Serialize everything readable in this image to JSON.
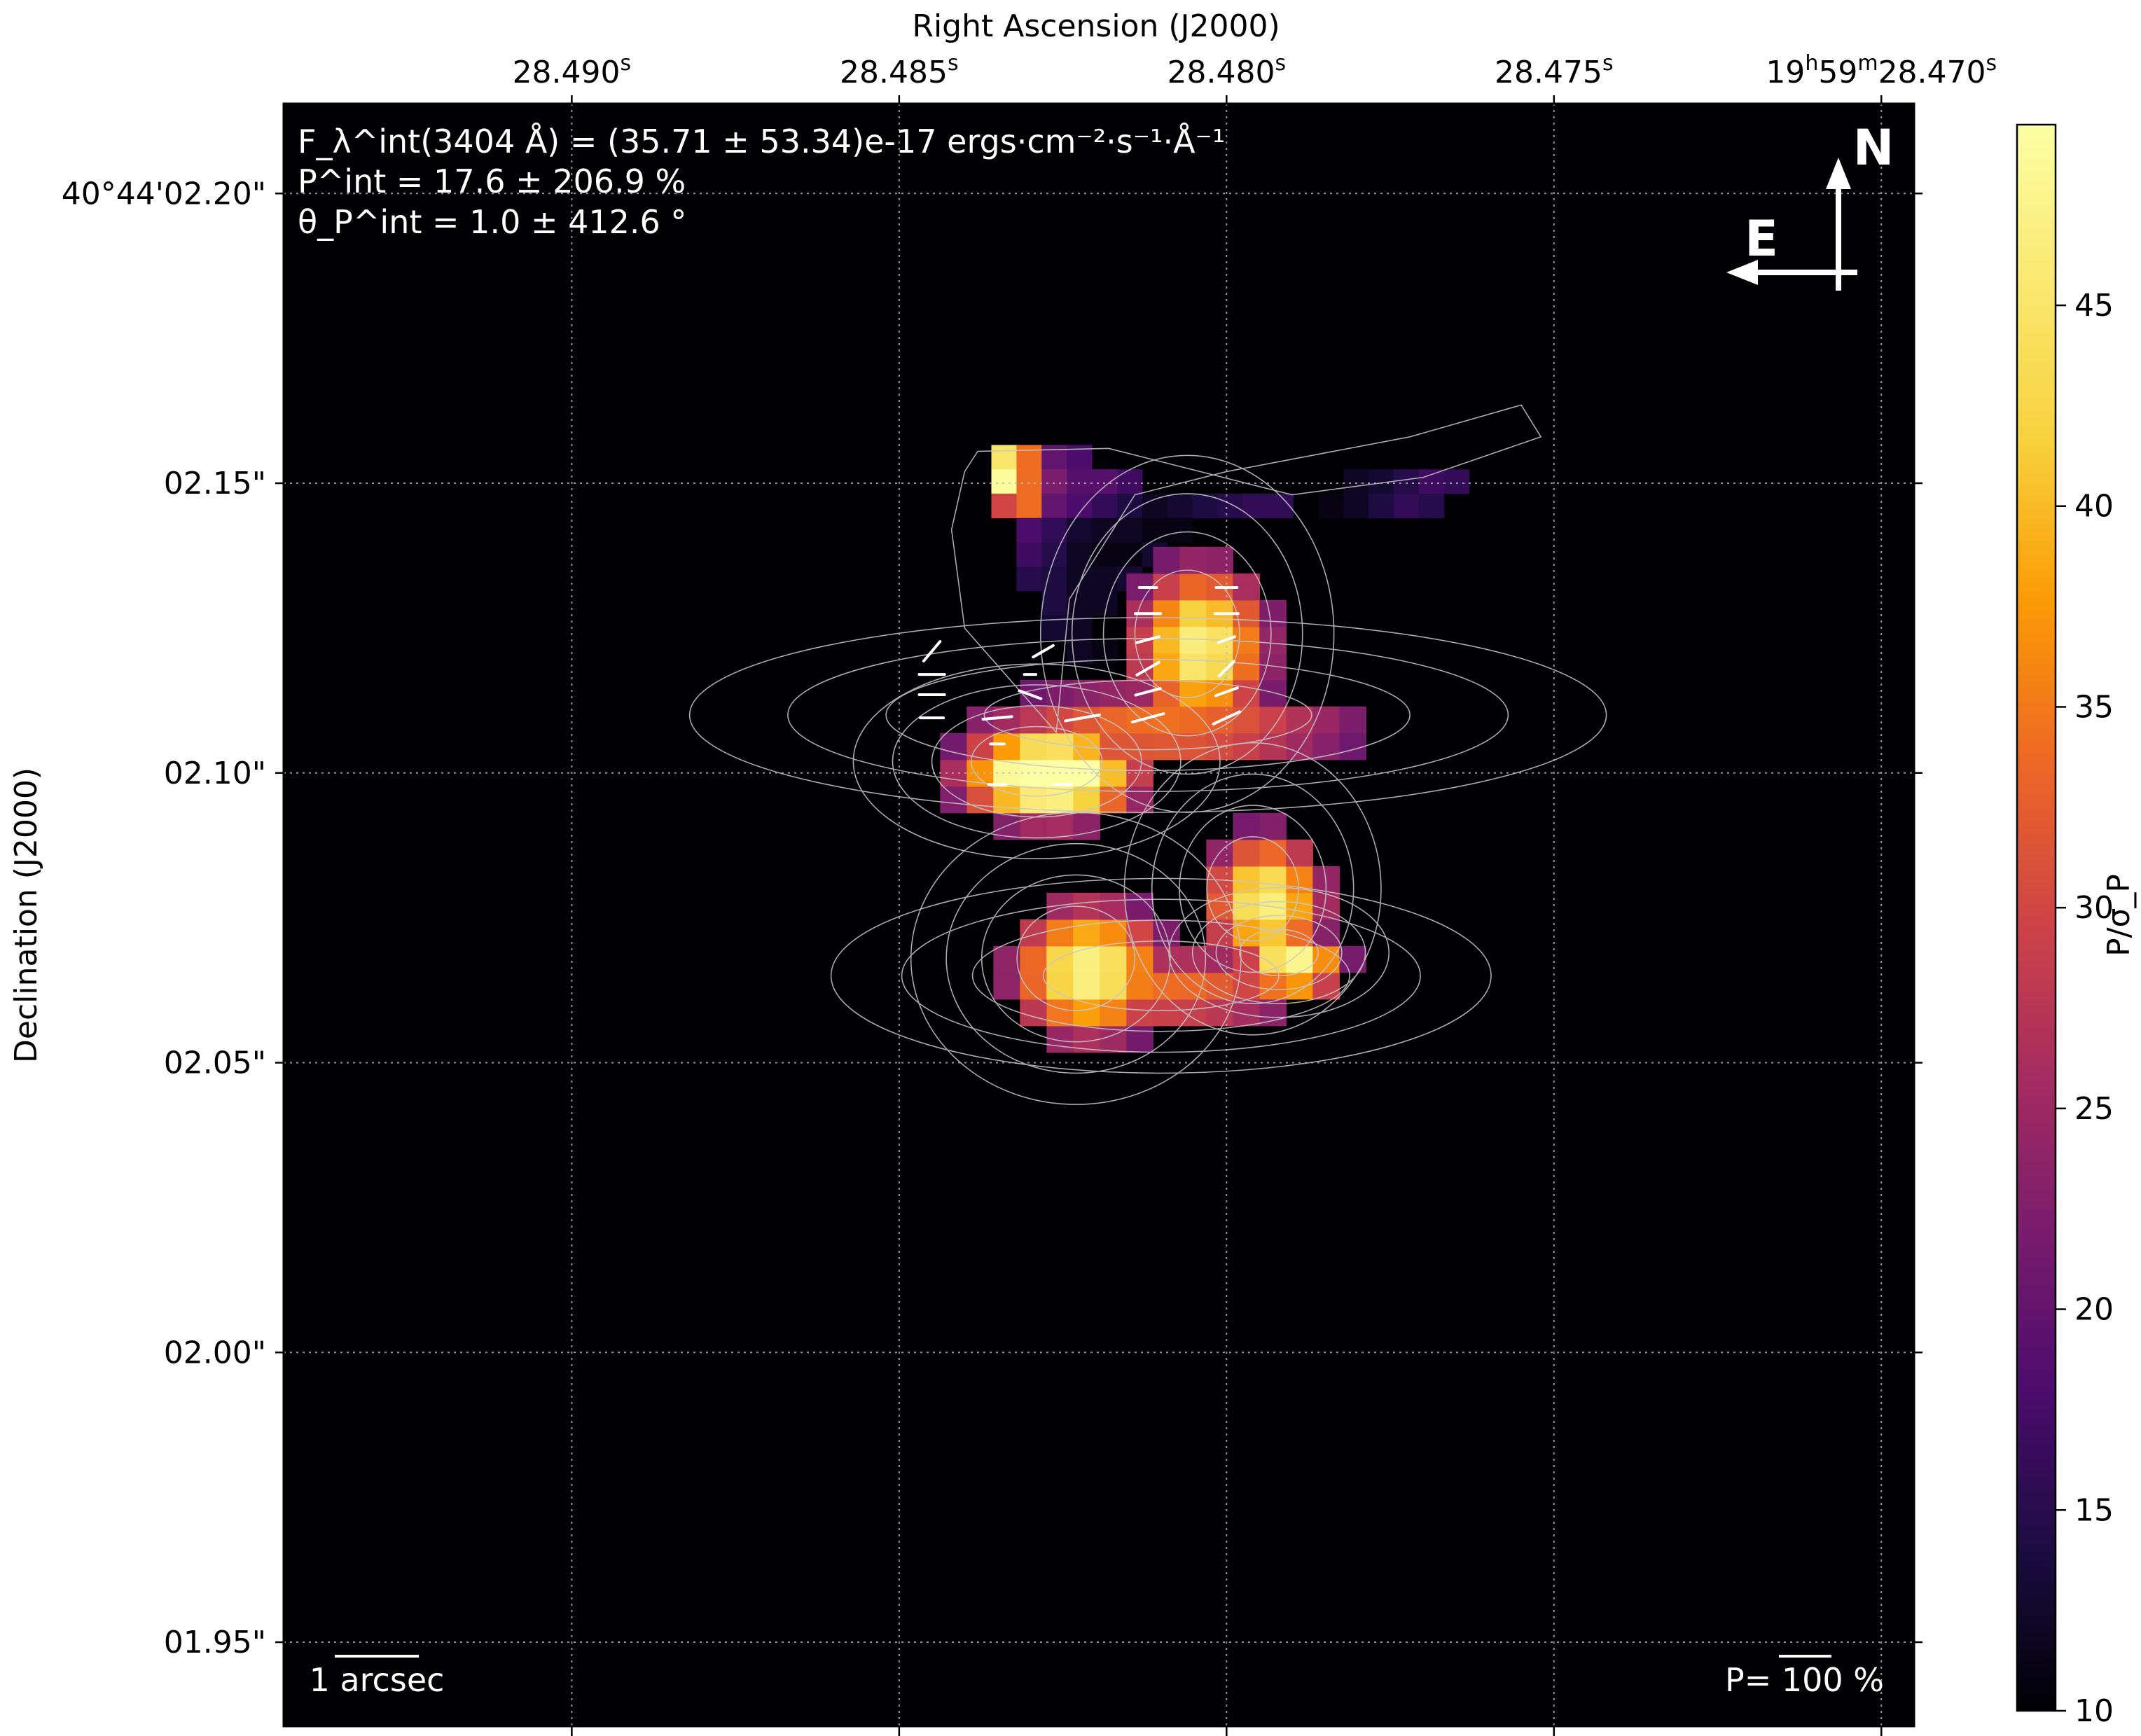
{
  "chart_data": {
    "type": "heatmap",
    "title": "",
    "xlabel": "Right Ascension (J2000)",
    "ylabel": "Declination (J2000)",
    "x_ticks": [
      {
        "value": 28.49,
        "label": "28.490",
        "sup": "s"
      },
      {
        "value": 28.485,
        "label": "28.485",
        "sup": "s"
      },
      {
        "value": 28.48,
        "label": "28.480",
        "sup": "s"
      },
      {
        "value": 28.475,
        "label": "28.475",
        "sup": "s"
      },
      {
        "value": 28.47,
        "label": "19h59m28.470s"
      }
    ],
    "y_ticks": [
      {
        "value": 2.2,
        "label": "40°44'02.20\""
      },
      {
        "value": 2.15,
        "label": "02.15\""
      },
      {
        "value": 2.1,
        "label": "02.10\""
      },
      {
        "value": 2.05,
        "label": "02.05\""
      },
      {
        "value": 2.0,
        "label": "02.00\""
      },
      {
        "value": 1.95,
        "label": "01.95\""
      }
    ],
    "xlim": [
      28.4944,
      28.4695
    ],
    "ylim": [
      1.9355,
      2.2155
    ],
    "grid": true,
    "colormap": "inferno",
    "colorbar": {
      "label": "P/σ_P",
      "min": 10,
      "max": 49.5,
      "ticks": [
        10,
        15,
        20,
        25,
        30,
        35,
        40,
        45
      ]
    },
    "annotations": {
      "flux": "F_λ^int(3404 Å) = (35.71 ± 53.34)e-17 ergs·cm⁻²·s⁻¹·Å⁻¹",
      "pol_degree": "P^int = 17.6 ± 206.9 %",
      "pol_angle": "θ_P^int = 1.0 ± 412.6 °",
      "scale_bar": "1 arcsec",
      "vector_scale": "P= 100 %",
      "north": "N",
      "east": "E"
    },
    "pixel_grid": {
      "x0": 28.4834,
      "dx": 0.000384,
      "y0": 2.1545,
      "dy": 0.0042,
      "rows": [
        {
          "r": 0,
          "c0": 0,
          "v": [
            45,
            34,
            20,
            18
          ]
        },
        {
          "r": 1,
          "c0": 0,
          "v": [
            49,
            34,
            22,
            19,
            19,
            17
          ]
        },
        {
          "r": 2,
          "c0": 0,
          "v": [
            30,
            34,
            20,
            18,
            16,
            14,
            12,
            13,
            14,
            15,
            16,
            16
          ]
        },
        {
          "r": 3,
          "c0": 1,
          "v": [
            18,
            16,
            13,
            12,
            12,
            11,
            11
          ]
        },
        {
          "r": 4,
          "c0": 1,
          "v": [
            17,
            15,
            12,
            11,
            11,
            13
          ]
        },
        {
          "r": 5,
          "c0": 1,
          "v": [
            15,
            14,
            12,
            12,
            13
          ]
        },
        {
          "r": 6,
          "c0": 2,
          "v": [
            14,
            12,
            12
          ]
        },
        {
          "r": 7,
          "c0": 2,
          "v": [
            13,
            12
          ]
        },
        {
          "r": 8,
          "c0": 3,
          "v": [
            12,
            11
          ]
        },
        {
          "r": 1,
          "c0": 14,
          "v": [
            12,
            13,
            15,
            17,
            16
          ]
        },
        {
          "r": 2,
          "c0": 13,
          "v": [
            11,
            12,
            14,
            16,
            15
          ]
        }
      ]
    },
    "blobs": [
      {
        "name": "north-arm",
        "ra": 28.4806,
        "dec": 2.124,
        "sra": 0.0008,
        "sdec": 0.011,
        "peak": 37
      },
      {
        "name": "left-core",
        "ra": 28.4829,
        "dec": 2.102,
        "sra": 0.001,
        "sdec": 0.006,
        "peak": 48
      },
      {
        "name": "bridge",
        "ra": 28.4812,
        "dec": 2.11,
        "sra": 0.0025,
        "sdec": 0.006,
        "peak": 25
      },
      {
        "name": "lower-left",
        "ra": 28.4823,
        "dec": 2.068,
        "sra": 0.0009,
        "sdec": 0.009,
        "peak": 38
      },
      {
        "name": "lower-right",
        "ra": 28.4796,
        "dec": 2.08,
        "sra": 0.0007,
        "sdec": 0.009,
        "peak": 37
      },
      {
        "name": "lower-right-2",
        "ra": 28.4792,
        "dec": 2.069,
        "sra": 0.0006,
        "sdec": 0.004,
        "peak": 40
      },
      {
        "name": "lower-bridge",
        "ra": 28.481,
        "dec": 2.065,
        "sra": 0.0018,
        "sdec": 0.006,
        "peak": 24
      }
    ],
    "vectors": [
      {
        "ra": 28.48,
        "dec": 2.132,
        "p": 18,
        "theta": 90
      },
      {
        "ra": 28.4812,
        "dec": 2.132,
        "p": 15,
        "theta": 90
      },
      {
        "ra": 28.48,
        "dec": 2.1275,
        "p": 20,
        "theta": 90
      },
      {
        "ra": 28.4812,
        "dec": 2.1275,
        "p": 22,
        "theta": 90
      },
      {
        "ra": 28.48,
        "dec": 2.123,
        "p": 15,
        "theta": 70
      },
      {
        "ra": 28.4812,
        "dec": 2.123,
        "p": 20,
        "theta": 75
      },
      {
        "ra": 28.4828,
        "dec": 2.121,
        "p": 20,
        "theta": 60
      },
      {
        "ra": 28.4845,
        "dec": 2.121,
        "p": 22,
        "theta": 40
      },
      {
        "ra": 28.48,
        "dec": 2.118,
        "p": 18,
        "theta": 45
      },
      {
        "ra": 28.4812,
        "dec": 2.118,
        "p": 22,
        "theta": 60
      },
      {
        "ra": 28.4845,
        "dec": 2.117,
        "p": 22,
        "theta": 90
      },
      {
        "ra": 28.483,
        "dec": 2.117,
        "p": 10,
        "theta": 90
      },
      {
        "ra": 28.48,
        "dec": 2.114,
        "p": 20,
        "theta": 70
      },
      {
        "ra": 28.4812,
        "dec": 2.114,
        "p": 22,
        "theta": 75
      },
      {
        "ra": 28.4845,
        "dec": 2.1135,
        "p": 22,
        "theta": 90
      },
      {
        "ra": 28.483,
        "dec": 2.1135,
        "p": 20,
        "theta": 110
      },
      {
        "ra": 28.48,
        "dec": 2.1095,
        "p": 25,
        "theta": 65
      },
      {
        "ra": 28.4812,
        "dec": 2.1095,
        "p": 28,
        "theta": 75
      },
      {
        "ra": 28.4822,
        "dec": 2.1095,
        "p": 30,
        "theta": 80
      },
      {
        "ra": 28.4835,
        "dec": 2.1095,
        "p": 25,
        "theta": 85
      },
      {
        "ra": 28.4845,
        "dec": 2.1095,
        "p": 20,
        "theta": 90
      },
      {
        "ra": 28.4835,
        "dec": 2.105,
        "p": 12,
        "theta": 90
      },
      {
        "ra": 28.4825,
        "dec": 2.098,
        "p": 15,
        "theta": 90
      },
      {
        "ra": 28.4835,
        "dec": 2.098,
        "p": 15,
        "theta": 90
      }
    ]
  }
}
